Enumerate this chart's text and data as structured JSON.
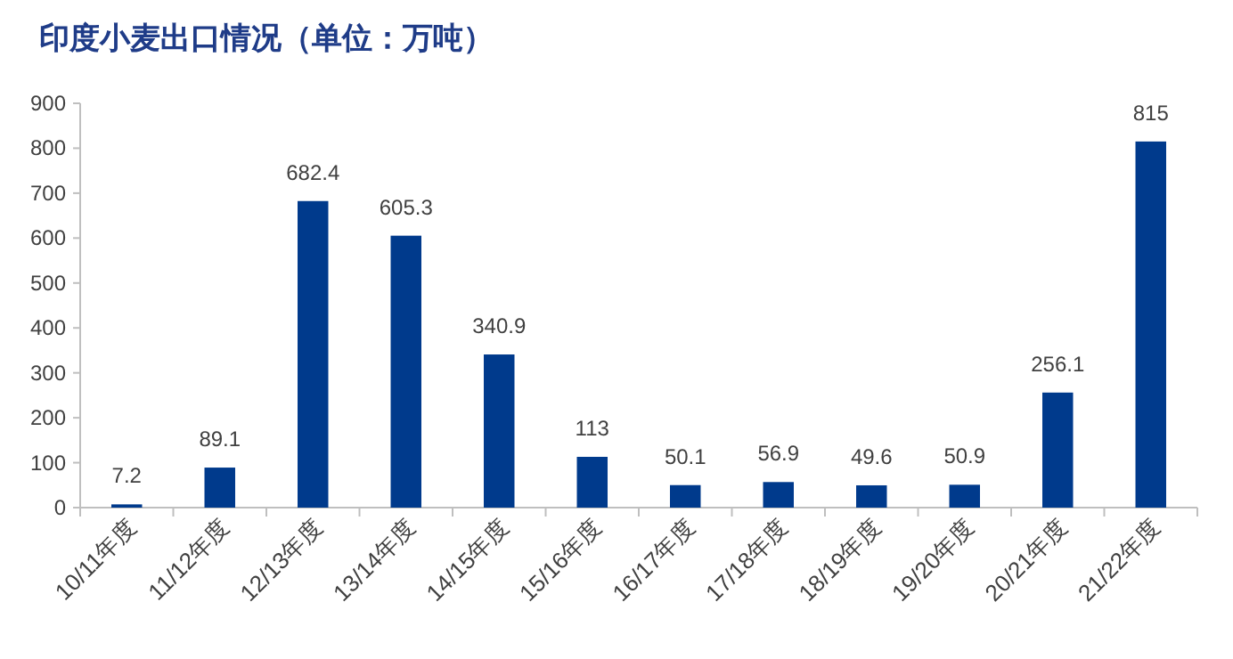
{
  "chart_data": {
    "type": "bar",
    "title": "印度小麦出口情况（单位：万吨）",
    "categories": [
      "10/11年度",
      "11/12年度",
      "12/13年度",
      "13/14年度",
      "14/15年度",
      "15/16年度",
      "16/17年度",
      "17/18年度",
      "18/19年度",
      "19/20年度",
      "20/21年度",
      "21/22年度"
    ],
    "values": [
      7.2,
      89.1,
      682.4,
      605.3,
      340.9,
      113,
      50.1,
      56.9,
      49.6,
      50.9,
      256.1,
      815
    ],
    "color": "#003a8c",
    "ylim": [
      0,
      900
    ],
    "yticks": [
      0,
      100,
      200,
      300,
      400,
      500,
      600,
      700,
      800,
      900
    ],
    "data_labels": true,
    "grid": false
  }
}
